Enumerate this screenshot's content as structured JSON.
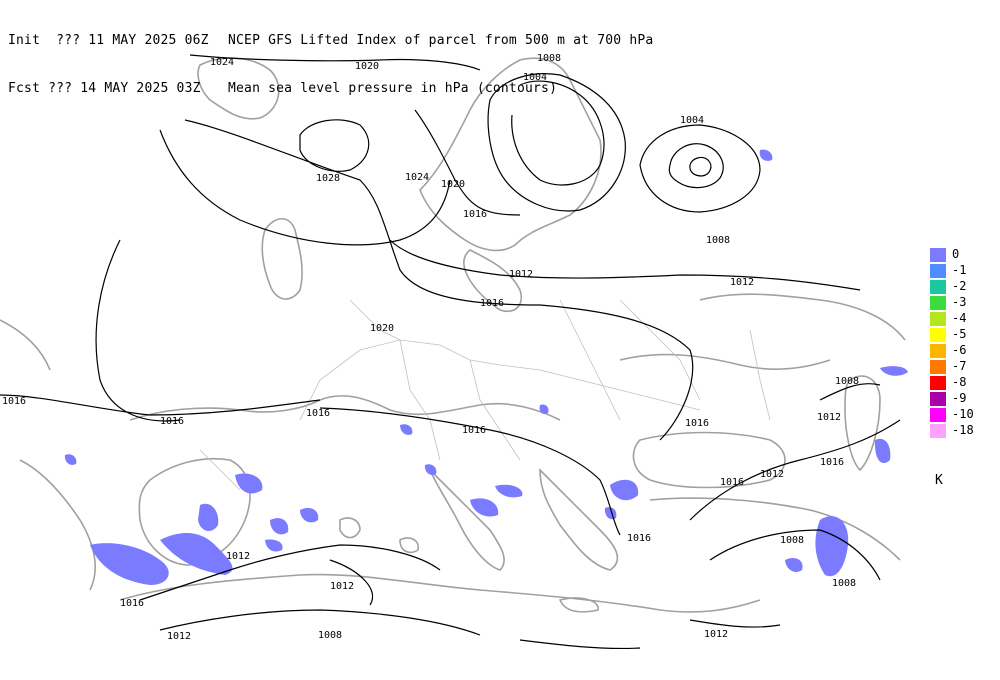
{
  "header": {
    "line1_left": "Init  ??? 11 MAY 2025 06Z",
    "line1_right": "NCEP GFS Lifted Index of parcel from 500 m at 700 hPa",
    "line2_left": "Fcst ??? 14 MAY 2025 03Z",
    "line2_right": "Mean sea level pressure in hPa (contours)"
  },
  "legend": {
    "items": [
      {
        "label": "0",
        "color": "#7b7bff"
      },
      {
        "label": "-1",
        "color": "#4f8cff"
      },
      {
        "label": "-2",
        "color": "#19c8a0"
      },
      {
        "label": "-3",
        "color": "#3cdc3c"
      },
      {
        "label": "-4",
        "color": "#b4e61e"
      },
      {
        "label": "-5",
        "color": "#ffff00"
      },
      {
        "label": "-6",
        "color": "#ffb400"
      },
      {
        "label": "-7",
        "color": "#ff7800"
      },
      {
        "label": "-8",
        "color": "#ff0000"
      },
      {
        "label": "-9",
        "color": "#aa00aa"
      },
      {
        "label": "-10",
        "color": "#ff00ff"
      },
      {
        "label": "-18",
        "color": "#ffa0ff"
      }
    ],
    "unit": "K"
  },
  "isobar_labels": [
    "1024",
    "1020",
    "1028",
    "1024",
    "1020",
    "1008",
    "1004",
    "1004",
    "1008",
    "1016",
    "1012",
    "1012",
    "1016",
    "1020",
    "1016",
    "1016",
    "1016",
    "1016",
    "1016",
    "1016",
    "1012",
    "1008",
    "1012",
    "1016",
    "1012",
    "1016",
    "1008",
    "1012",
    "1012",
    "1008",
    "1008",
    "1016",
    "1012"
  ]
}
